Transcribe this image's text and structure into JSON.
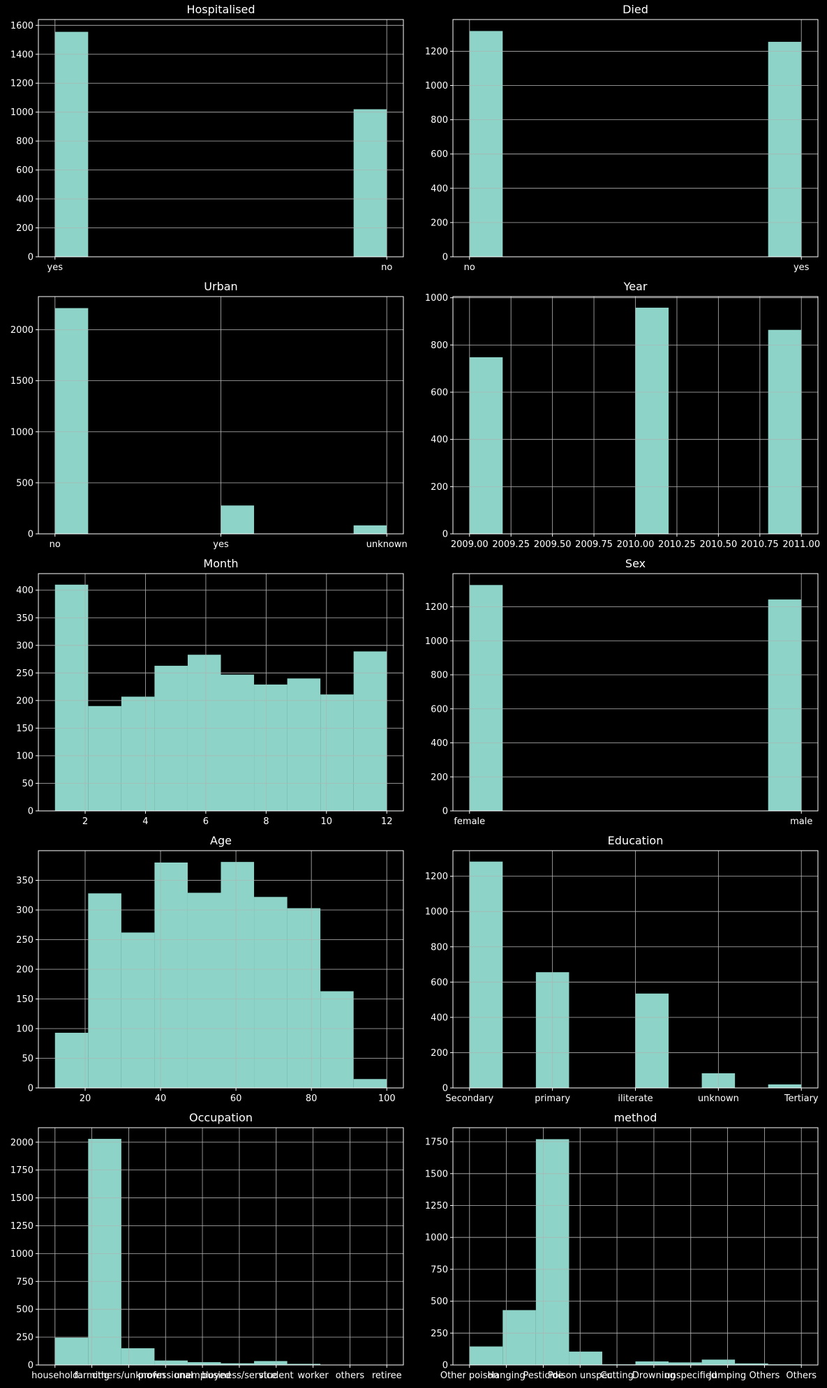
{
  "chart_data": [
    {
      "type": "bar",
      "title": "Hospitalised",
      "xscale": "categorical",
      "bins": 10,
      "xlim": [
        -0.05,
        1.05
      ],
      "xticks": [
        0,
        1
      ],
      "xtick_labels": [
        "yes",
        "no"
      ],
      "ylim": [
        0,
        1640
      ],
      "yticks": [
        0,
        200,
        400,
        600,
        800,
        1000,
        1200,
        1400,
        1600
      ],
      "bars": [
        {
          "x0": 0,
          "x1": 0.1,
          "y": 1555
        },
        {
          "x0": 0.9,
          "x1": 1,
          "y": 1020
        }
      ],
      "grid": true
    },
    {
      "type": "bar",
      "title": "Died",
      "xscale": "categorical",
      "bins": 10,
      "xlim": [
        -0.05,
        1.05
      ],
      "xticks": [
        0,
        1
      ],
      "xtick_labels": [
        "no",
        "yes"
      ],
      "ylim": [
        0,
        1385
      ],
      "yticks": [
        0,
        200,
        400,
        600,
        800,
        1000,
        1200
      ],
      "bars": [
        {
          "x0": 0,
          "x1": 0.1,
          "y": 1318
        },
        {
          "x0": 0.9,
          "x1": 1,
          "y": 1255
        }
      ],
      "grid": true
    },
    {
      "type": "bar",
      "title": "Urban",
      "xscale": "categorical",
      "bins": 10,
      "xlim": [
        -0.1,
        2.1
      ],
      "xticks": [
        0,
        1,
        2
      ],
      "xtick_labels": [
        "no",
        "yes",
        "unknown"
      ],
      "ylim": [
        0,
        2325
      ],
      "yticks": [
        0,
        500,
        1000,
        1500,
        2000
      ],
      "bars": [
        {
          "x0": 0,
          "x1": 0.2,
          "y": 2212
        },
        {
          "x0": 1,
          "x1": 1.2,
          "y": 278
        },
        {
          "x0": 1.8,
          "x1": 2,
          "y": 83
        }
      ],
      "grid": true
    },
    {
      "type": "bar",
      "title": "Year",
      "xscale": "linear",
      "bins": 10,
      "xlim": [
        2008.9,
        2011.1
      ],
      "xticks": [
        2009.0,
        2009.25,
        2009.5,
        2009.75,
        2010.0,
        2010.25,
        2010.5,
        2010.75,
        2011.0
      ],
      "xtick_labels": [
        "2009.00",
        "2009.25",
        "2009.50",
        "2009.75",
        "2010.00",
        "2010.25",
        "2010.50",
        "2010.75",
        "2011.00"
      ],
      "ylim": [
        0,
        1005
      ],
      "yticks": [
        0,
        200,
        400,
        600,
        800,
        1000
      ],
      "bars": [
        {
          "x0": 2009.0,
          "x1": 2009.2,
          "y": 748
        },
        {
          "x0": 2010.0,
          "x1": 2010.2,
          "y": 958
        },
        {
          "x0": 2010.8,
          "x1": 2011.0,
          "y": 864
        }
      ],
      "grid": true
    },
    {
      "type": "bar",
      "title": "Month",
      "xscale": "linear",
      "bins": 10,
      "xlim": [
        0.45,
        12.55
      ],
      "xticks": [
        2,
        4,
        6,
        8,
        10,
        12
      ],
      "xtick_labels": [
        "2",
        "4",
        "6",
        "8",
        "10",
        "12"
      ],
      "ylim": [
        0,
        430
      ],
      "yticks": [
        0,
        50,
        100,
        150,
        200,
        250,
        300,
        350,
        400
      ],
      "bars": [
        {
          "x0": 1.0,
          "x1": 2.1,
          "y": 410
        },
        {
          "x0": 2.1,
          "x1": 3.2,
          "y": 190
        },
        {
          "x0": 3.2,
          "x1": 4.3,
          "y": 207
        },
        {
          "x0": 4.3,
          "x1": 5.4,
          "y": 263
        },
        {
          "x0": 5.4,
          "x1": 6.5,
          "y": 283
        },
        {
          "x0": 6.5,
          "x1": 7.6,
          "y": 247
        },
        {
          "x0": 7.6,
          "x1": 8.7,
          "y": 229
        },
        {
          "x0": 8.7,
          "x1": 9.8,
          "y": 240
        },
        {
          "x0": 9.8,
          "x1": 10.9,
          "y": 211
        },
        {
          "x0": 10.9,
          "x1": 12.0,
          "y": 289
        }
      ],
      "grid": true
    },
    {
      "type": "bar",
      "title": "Sex",
      "xscale": "categorical",
      "bins": 10,
      "xlim": [
        -0.05,
        1.05
      ],
      "xticks": [
        0,
        1
      ],
      "xtick_labels": [
        "female",
        "male"
      ],
      "ylim": [
        0,
        1395
      ],
      "yticks": [
        0,
        200,
        400,
        600,
        800,
        1000,
        1200
      ],
      "bars": [
        {
          "x0": 0,
          "x1": 0.1,
          "y": 1328
        },
        {
          "x0": 0.9,
          "x1": 1,
          "y": 1243
        }
      ],
      "grid": true
    },
    {
      "type": "bar",
      "title": "Age",
      "xscale": "linear",
      "bins": 10,
      "xlim": [
        7.6,
        104.4
      ],
      "xticks": [
        20,
        40,
        60,
        80,
        100
      ],
      "xtick_labels": [
        "20",
        "40",
        "60",
        "80",
        "100"
      ],
      "ylim": [
        0,
        400
      ],
      "yticks": [
        0,
        50,
        100,
        150,
        200,
        250,
        300,
        350
      ],
      "bars": [
        {
          "x0": 12,
          "x1": 20.8,
          "y": 93
        },
        {
          "x0": 20.8,
          "x1": 29.6,
          "y": 328
        },
        {
          "x0": 29.6,
          "x1": 38.4,
          "y": 262
        },
        {
          "x0": 38.4,
          "x1": 47.2,
          "y": 380
        },
        {
          "x0": 47.2,
          "x1": 56.0,
          "y": 329
        },
        {
          "x0": 56.0,
          "x1": 64.8,
          "y": 381
        },
        {
          "x0": 64.8,
          "x1": 73.6,
          "y": 322
        },
        {
          "x0": 73.6,
          "x1": 82.4,
          "y": 303
        },
        {
          "x0": 82.4,
          "x1": 91.2,
          "y": 163
        },
        {
          "x0": 91.2,
          "x1": 100,
          "y": 15
        }
      ],
      "grid": true
    },
    {
      "type": "bar",
      "title": "Education",
      "xscale": "categorical",
      "bins": 10,
      "xlim": [
        -0.2,
        4.2
      ],
      "xticks": [
        0,
        1,
        2,
        3,
        4
      ],
      "xtick_labels": [
        "Secondary",
        "primary",
        "iliterate",
        "unknown",
        "Tertiary"
      ],
      "ylim": [
        0,
        1345
      ],
      "yticks": [
        0,
        200,
        400,
        600,
        800,
        1000,
        1200
      ],
      "bars": [
        {
          "x0": 0,
          "x1": 0.4,
          "y": 1283
        },
        {
          "x0": 0.8,
          "x1": 1.2,
          "y": 656
        },
        {
          "x0": 2.0,
          "x1": 2.4,
          "y": 535
        },
        {
          "x0": 2.8,
          "x1": 3.2,
          "y": 83
        },
        {
          "x0": 3.6,
          "x1": 4.0,
          "y": 20
        }
      ],
      "grid": true
    },
    {
      "type": "bar",
      "title": "Occupation",
      "xscale": "categorical",
      "bins": 10,
      "xlim": [
        -0.45,
        9.45
      ],
      "xticks": [
        0,
        1,
        2,
        3,
        4,
        5,
        6,
        7,
        8,
        9
      ],
      "xtick_labels": [
        "household",
        "farming",
        "others/unknown",
        "professional",
        "unemployed",
        "business/service",
        "student",
        "worker",
        "others",
        "retiree"
      ],
      "ylim": [
        0,
        2130
      ],
      "yticks": [
        0,
        250,
        500,
        750,
        1000,
        1250,
        1500,
        1750,
        2000
      ],
      "bars": [
        {
          "x0": 0,
          "x1": 0.9,
          "y": 245
        },
        {
          "x0": 0.9,
          "x1": 1.8,
          "y": 2030
        },
        {
          "x0": 1.8,
          "x1": 2.7,
          "y": 150
        },
        {
          "x0": 2.7,
          "x1": 3.6,
          "y": 40
        },
        {
          "x0": 3.6,
          "x1": 4.5,
          "y": 25
        },
        {
          "x0": 4.5,
          "x1": 5.4,
          "y": 15
        },
        {
          "x0": 5.4,
          "x1": 6.3,
          "y": 35
        },
        {
          "x0": 6.3,
          "x1": 7.2,
          "y": 10
        },
        {
          "x0": 7.2,
          "x1": 8.1,
          "y": 3
        },
        {
          "x0": 8.1,
          "x1": 9.0,
          "y": 2
        }
      ],
      "grid": true
    },
    {
      "type": "bar",
      "title": "method",
      "xscale": "categorical",
      "bins": 10,
      "xlim": [
        -0.45,
        9.45
      ],
      "xticks": [
        0,
        1,
        2,
        3,
        4,
        5,
        6,
        7,
        8,
        9
      ],
      "xtick_labels": [
        "Other poison",
        "Hanging",
        "Pesticide",
        "Poison unspec",
        "Cutting",
        "Drowning",
        "unspecified",
        "Jumping",
        "Others",
        "Others"
      ],
      "ylim": [
        0,
        1860
      ],
      "yticks": [
        0,
        250,
        500,
        750,
        1000,
        1250,
        1500,
        1750
      ],
      "bars": [
        {
          "x0": 0,
          "x1": 0.9,
          "y": 145
        },
        {
          "x0": 0.9,
          "x1": 1.8,
          "y": 430
        },
        {
          "x0": 1.8,
          "x1": 2.7,
          "y": 1770
        },
        {
          "x0": 2.7,
          "x1": 3.6,
          "y": 105
        },
        {
          "x0": 3.6,
          "x1": 4.5,
          "y": 5
        },
        {
          "x0": 4.5,
          "x1": 5.4,
          "y": 28
        },
        {
          "x0": 5.4,
          "x1": 6.3,
          "y": 20
        },
        {
          "x0": 6.3,
          "x1": 7.2,
          "y": 42
        },
        {
          "x0": 7.2,
          "x1": 8.1,
          "y": 12
        },
        {
          "x0": 8.1,
          "x1": 9.0,
          "y": 5
        }
      ],
      "grid": true
    }
  ]
}
